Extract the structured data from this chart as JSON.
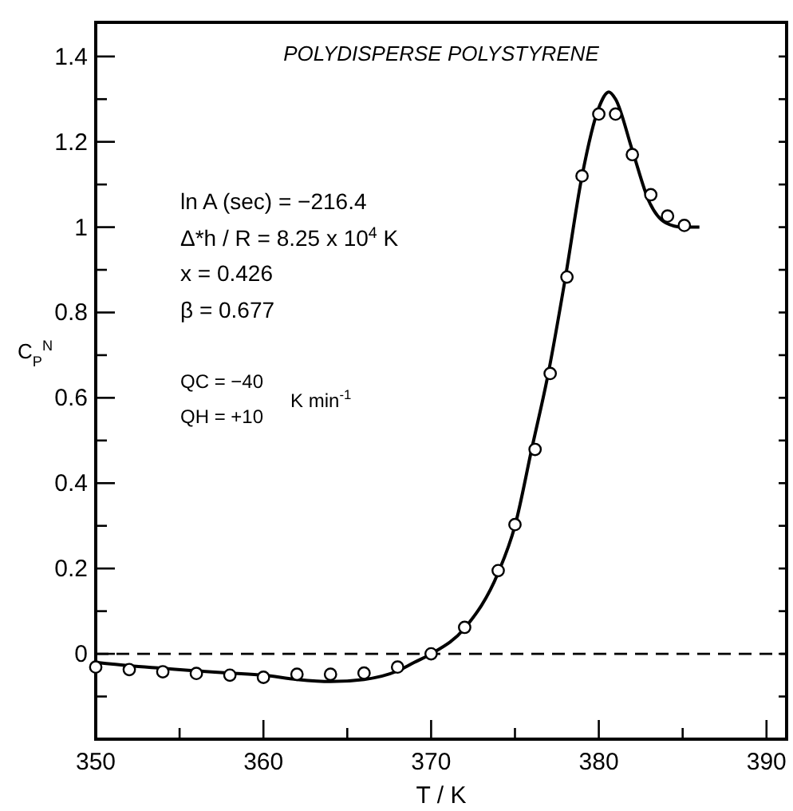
{
  "chart_data": {
    "type": "scatter",
    "title": "POLYDISPERSE POLYSTYRENE",
    "xlabel": "T / K",
    "ylabel": "C$_{P}$$^{N}$",
    "xlim": [
      350,
      391.2
    ],
    "ylim": [
      -0.2,
      1.48
    ],
    "xticks": [
      350,
      {
        "value": 355,
        "label": null
      },
      360,
      {
        "value": 365,
        "label": null
      },
      370,
      {
        "value": 375,
        "label": null
      },
      380,
      {
        "value": 385,
        "label": null
      },
      390
    ],
    "yticks": [
      {
        "value": -0.1,
        "label": null
      },
      0,
      {
        "value": 0.1,
        "label": null
      },
      0.2,
      {
        "value": 0.3,
        "label": null
      },
      0.4,
      {
        "value": 0.5,
        "label": null
      },
      0.6,
      {
        "value": 0.7,
        "label": null
      },
      0.8,
      {
        "value": 0.9,
        "label": null
      },
      1.0,
      {
        "value": 1.1,
        "label": null
      },
      1.2,
      {
        "value": 1.3,
        "label": null
      },
      1.4
    ],
    "grid": false,
    "series": [
      {
        "color": "#000000",
        "marker": "circle",
        "x": [
          350,
          352,
          354,
          356,
          358,
          360,
          362,
          364,
          366,
          368,
          370,
          372,
          374,
          375,
          376.2,
          377.1,
          378.1,
          379,
          380,
          381,
          382,
          383.1,
          384.1,
          385.1
        ],
        "values": [
          -0.031,
          -0.037,
          -0.042,
          -0.046,
          -0.05,
          -0.055,
          -0.048,
          -0.048,
          -0.045,
          -0.031,
          0.0,
          0.062,
          0.195,
          0.303,
          0.479,
          0.657,
          0.883,
          1.12,
          1.265,
          1.265,
          1.17,
          1.076,
          1.026,
          1.004
        ]
      },
      {
        "type": "line",
        "color": "#000000",
        "line_style": "solid",
        "x": [
          350,
          352,
          354,
          356,
          358,
          360,
          362,
          364,
          366,
          368,
          369,
          370,
          372,
          374,
          375,
          376,
          377,
          378,
          379,
          380,
          380.6,
          381,
          382,
          383,
          384,
          385,
          386
        ],
        "values": [
          -0.02,
          -0.028,
          -0.034,
          -0.04,
          -0.045,
          -0.05,
          -0.06,
          -0.065,
          -0.06,
          -0.04,
          -0.02,
          0.0,
          0.06,
          0.19,
          0.3,
          0.48,
          0.66,
          0.88,
          1.12,
          1.28,
          1.317,
          1.3,
          1.18,
          1.06,
          1.01,
          1.0,
          1.0
        ]
      }
    ],
    "ref_lines": [
      {
        "axis": "y",
        "value": 0,
        "line_style": "dashed",
        "color": "#000000"
      }
    ],
    "annotations": [
      "ln A (sec) = −216.4",
      "Δ*h / R  = 8.25 x 10$^{4}$ K",
      "x  = 0.426",
      "β  = 0.677",
      "QC = −40",
      "QH = +10",
      "K min$^{-1}$"
    ]
  }
}
